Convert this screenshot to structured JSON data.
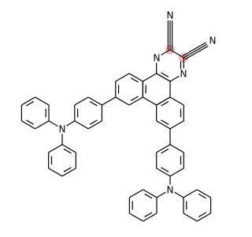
{
  "atoms": [
    {
      "label": "N"
    },
    {
      "label": "N"
    },
    {
      "label": "N"
    },
    {
      "label": "N"
    },
    {
      "label": "N"
    },
    {
      "label": "N"
    }
  ]
}
